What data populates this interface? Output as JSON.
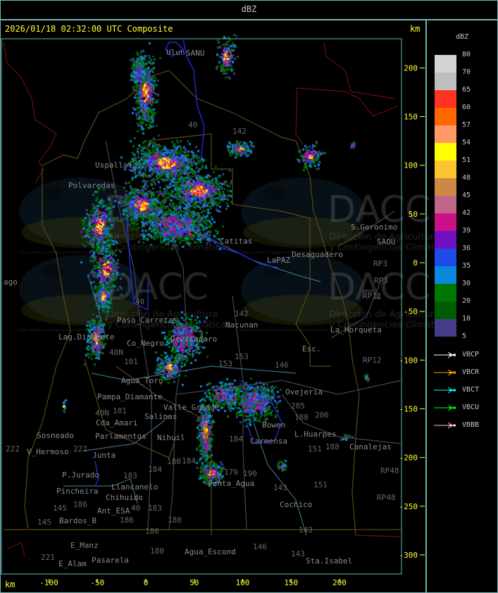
{
  "header": {
    "title": "dBZ"
  },
  "map": {
    "timestamp": "2026/01/18 02:32:00 UTC Composite",
    "unit_top": "km",
    "unit_bottom": "km",
    "x_ticks": [
      -100,
      -50,
      0,
      50,
      100,
      150,
      200
    ],
    "y_ticks": [
      200,
      150,
      100,
      50,
      0,
      -50,
      -100,
      -150,
      -200,
      -250,
      -300
    ],
    "places": [
      "Ulun",
      "SANU",
      "Uspallata",
      "Polvaredas",
      "Catitas",
      "LaPAZ",
      "Desaguadero",
      "S.Geronimo",
      "SAOU",
      "Nacunan",
      "La_Horqueta",
      "Esc.",
      "Lag.Diamante",
      "Co_Negro",
      "Divisadero",
      "Paso_Carretas",
      "Agua_Toro",
      "Pampa_Diamante",
      "Valle_Grande",
      "Salinas",
      "Cda_Amari",
      "Parlamentos",
      "Sosneado",
      "Nihuil",
      "V_Hermoso",
      "Junta",
      "P.Jurado",
      "Pincheira",
      "Llancanelo",
      "Chihuido",
      "Ant_ESA",
      "Bardos_B",
      "E_Manz",
      "E_Alam",
      "Pasarela",
      "Agua_Escond",
      "Punta_Agua",
      "Bowen",
      "Carmensa",
      "Ovejeria",
      "L.Huarpes",
      "Canalejas",
      "Cochico",
      "Sta.Isabel",
      "ago"
    ],
    "routes": [
      "40",
      "142",
      "142",
      "153",
      "153",
      "146",
      "146",
      "205",
      "206",
      "188",
      "188",
      "151",
      "151",
      "143",
      "143",
      "143",
      "184",
      "184",
      "184",
      "180",
      "180",
      "180",
      "183",
      "183",
      "186",
      "186",
      "186",
      "145",
      "145",
      "221",
      "222",
      "222",
      "101",
      "101",
      "40N",
      "40N",
      "40",
      "40",
      "RP3",
      "RP3",
      "RP11",
      "RP12",
      "RP48",
      "RP48",
      "179",
      "190"
    ],
    "watermark": {
      "logo": "DACC",
      "line1": "Dirección de Agricultura",
      "line2": "y Contingencias Climáticas",
      "url": "http://www.contingencias.mendoza.gov.ar"
    }
  },
  "legend": {
    "title": "dBZ",
    "labels": [
      "80",
      "70",
      "65",
      "60",
      "57",
      "54",
      "51",
      "48",
      "45",
      "42",
      "39",
      "36",
      "35",
      "30",
      "20",
      "10",
      "5"
    ],
    "colors": [
      "#d4d4d4",
      "#bebebe",
      "#ff3322",
      "#ff6600",
      "#ff9966",
      "#ffff00",
      "#fcc430",
      "#cc8844",
      "#c06688",
      "#cc1188",
      "#7010c0",
      "#1e4ae8",
      "#0a88dd",
      "#007700",
      "#005c00",
      "#443c88"
    ]
  },
  "radars": [
    {
      "name": "VBCP",
      "color": "#ffffff"
    },
    {
      "name": "VBCR",
      "color": "#ffa500"
    },
    {
      "name": "VBCT",
      "color": "#00ffff"
    },
    {
      "name": "VBCU",
      "color": "#00ff00"
    },
    {
      "name": "VBBB",
      "color": "#ffc0cb"
    }
  ]
}
